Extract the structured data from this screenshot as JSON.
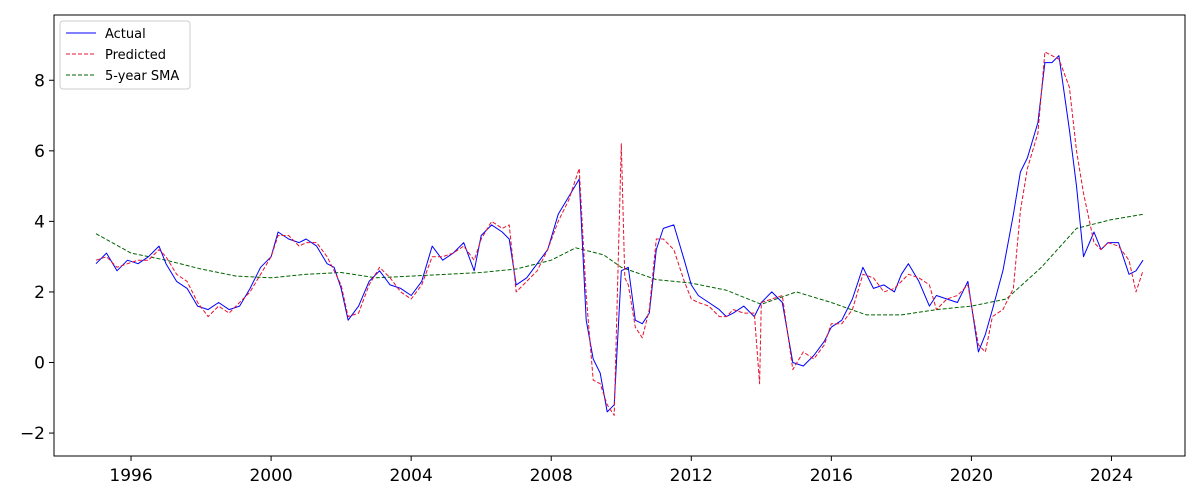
{
  "chart_data": {
    "type": "line",
    "title": "",
    "xlabel": "",
    "ylabel": "",
    "xlim": [
      1993.8,
      2026.1
    ],
    "ylim": [
      -2.65,
      9.85
    ],
    "x_ticks": [
      1996,
      2000,
      2004,
      2008,
      2012,
      2016,
      2020,
      2024
    ],
    "x_tick_labels": [
      "1996",
      "2000",
      "2004",
      "2008",
      "2012",
      "2016",
      "2020",
      "2024"
    ],
    "y_ticks": [
      -2,
      0,
      2,
      4,
      6,
      8
    ],
    "y_tick_labels": [
      "−2",
      "0",
      "2",
      "4",
      "6",
      "8"
    ],
    "grid": false,
    "legend_position": "top-left",
    "series": [
      {
        "name": "Actual",
        "color": "#0000ff",
        "style": "solid",
        "x": [
          1995.0,
          1995.3,
          1995.6,
          1995.9,
          1996.2,
          1996.5,
          1996.8,
          1997.0,
          1997.3,
          1997.6,
          1997.9,
          1998.2,
          1998.5,
          1998.8,
          1999.1,
          1999.4,
          1999.7,
          2000.0,
          2000.2,
          2000.5,
          2000.8,
          2001.0,
          2001.3,
          2001.6,
          2001.8,
          2002.0,
          2002.2,
          2002.5,
          2002.8,
          2003.1,
          2003.4,
          2003.7,
          2004.0,
          2004.3,
          2004.6,
          2004.9,
          2005.2,
          2005.5,
          2005.8,
          2006.0,
          2006.3,
          2006.6,
          2006.8,
          2007.0,
          2007.3,
          2007.6,
          2007.9,
          2008.2,
          2008.5,
          2008.8,
          2009.0,
          2009.2,
          2009.4,
          2009.6,
          2009.8,
          2010.0,
          2010.2,
          2010.4,
          2010.6,
          2010.8,
          2011.0,
          2011.2,
          2011.5,
          2011.8,
          2012.0,
          2012.2,
          2012.5,
          2012.8,
          2013.0,
          2013.2,
          2013.5,
          2013.8,
          2014.0,
          2014.3,
          2014.6,
          2014.9,
          2015.2,
          2015.5,
          2015.8,
          2016.0,
          2016.3,
          2016.6,
          2016.9,
          2017.2,
          2017.5,
          2017.8,
          2018.0,
          2018.2,
          2018.5,
          2018.8,
          2019.0,
          2019.3,
          2019.6,
          2019.9,
          2020.2,
          2020.4,
          2020.6,
          2020.9,
          2021.2,
          2021.4,
          2021.6,
          2021.9,
          2022.1,
          2022.3,
          2022.5,
          2022.8,
          2023.0,
          2023.2,
          2023.5,
          2023.7,
          2023.9,
          2024.2,
          2024.5,
          2024.7,
          2024.9
        ],
        "y": [
          2.8,
          3.1,
          2.6,
          2.9,
          2.8,
          3.0,
          3.3,
          2.8,
          2.3,
          2.1,
          1.6,
          1.5,
          1.7,
          1.5,
          1.6,
          2.1,
          2.7,
          3.0,
          3.7,
          3.5,
          3.4,
          3.5,
          3.3,
          2.8,
          2.7,
          2.1,
          1.2,
          1.6,
          2.3,
          2.6,
          2.2,
          2.1,
          1.9,
          2.3,
          3.3,
          2.9,
          3.1,
          3.4,
          2.6,
          3.6,
          3.9,
          3.7,
          3.5,
          2.2,
          2.4,
          2.8,
          3.2,
          4.2,
          4.7,
          5.2,
          1.2,
          0.1,
          -0.3,
          -1.4,
          -1.2,
          2.6,
          2.7,
          1.2,
          1.1,
          1.4,
          3.2,
          3.8,
          3.9,
          2.9,
          2.2,
          1.9,
          1.7,
          1.5,
          1.3,
          1.4,
          1.6,
          1.3,
          1.7,
          2.0,
          1.7,
          0.0,
          -0.1,
          0.2,
          0.6,
          1.0,
          1.2,
          1.8,
          2.7,
          2.1,
          2.2,
          2.0,
          2.5,
          2.8,
          2.3,
          1.6,
          1.9,
          1.8,
          1.7,
          2.3,
          0.3,
          0.8,
          1.5,
          2.6,
          4.2,
          5.4,
          5.8,
          6.8,
          8.5,
          8.5,
          8.7,
          6.6,
          5.0,
          3.0,
          3.7,
          3.2,
          3.4,
          3.4,
          2.5,
          2.6,
          2.9
        ]
      },
      {
        "name": "Predicted",
        "color": "#e8112d",
        "style": "dashed",
        "x": [
          1995.0,
          1995.3,
          1995.6,
          1995.9,
          1996.2,
          1996.5,
          1996.8,
          1997.0,
          1997.3,
          1997.6,
          1997.9,
          1998.2,
          1998.5,
          1998.8,
          1999.1,
          1999.4,
          1999.7,
          2000.0,
          2000.2,
          2000.5,
          2000.8,
          2001.0,
          2001.3,
          2001.6,
          2001.8,
          2002.0,
          2002.2,
          2002.5,
          2002.8,
          2003.1,
          2003.4,
          2003.7,
          2004.0,
          2004.3,
          2004.6,
          2004.9,
          2005.2,
          2005.5,
          2005.8,
          2006.0,
          2006.3,
          2006.6,
          2006.8,
          2007.0,
          2007.3,
          2007.6,
          2007.9,
          2008.2,
          2008.5,
          2008.8,
          2009.0,
          2009.2,
          2009.4,
          2009.6,
          2009.8,
          2010.0,
          2010.1,
          2010.2,
          2010.4,
          2010.6,
          2010.8,
          2011.0,
          2011.2,
          2011.5,
          2011.8,
          2012.0,
          2012.2,
          2012.5,
          2012.8,
          2013.0,
          2013.2,
          2013.5,
          2013.8,
          2013.95,
          2014.0,
          2014.3,
          2014.6,
          2014.9,
          2015.2,
          2015.5,
          2015.8,
          2016.0,
          2016.3,
          2016.6,
          2016.9,
          2017.2,
          2017.5,
          2017.8,
          2018.0,
          2018.2,
          2018.5,
          2018.8,
          2019.0,
          2019.3,
          2019.6,
          2019.9,
          2020.2,
          2020.4,
          2020.6,
          2020.9,
          2021.2,
          2021.4,
          2021.6,
          2021.9,
          2022.1,
          2022.3,
          2022.5,
          2022.8,
          2023.0,
          2023.2,
          2023.5,
          2023.7,
          2023.9,
          2024.2,
          2024.5,
          2024.7,
          2024.9
        ],
        "y": [
          2.9,
          3.0,
          2.7,
          2.8,
          2.9,
          2.9,
          3.2,
          3.0,
          2.5,
          2.3,
          1.7,
          1.3,
          1.6,
          1.4,
          1.7,
          2.0,
          2.5,
          3.0,
          3.6,
          3.6,
          3.3,
          3.4,
          3.4,
          3.0,
          2.6,
          2.2,
          1.3,
          1.4,
          2.2,
          2.7,
          2.4,
          2.0,
          1.8,
          2.2,
          3.0,
          3.0,
          3.1,
          3.3,
          2.9,
          3.5,
          4.0,
          3.8,
          3.9,
          2.0,
          2.3,
          2.6,
          3.2,
          4.0,
          4.6,
          5.5,
          1.9,
          -0.5,
          -0.6,
          -1.2,
          -1.5,
          6.2,
          2.4,
          2.2,
          1.0,
          0.7,
          1.5,
          3.5,
          3.5,
          3.2,
          2.3,
          1.8,
          1.7,
          1.6,
          1.3,
          1.3,
          1.5,
          1.4,
          1.4,
          -0.6,
          1.7,
          1.8,
          1.9,
          -0.2,
          0.3,
          0.1,
          0.5,
          1.1,
          1.1,
          1.5,
          2.5,
          2.4,
          2.0,
          2.1,
          2.3,
          2.5,
          2.4,
          2.2,
          1.5,
          1.8,
          1.9,
          2.2,
          0.5,
          0.3,
          1.3,
          1.5,
          2.1,
          4.3,
          5.5,
          6.5,
          8.8,
          8.7,
          8.6,
          7.8,
          6.0,
          4.8,
          3.4,
          3.2,
          3.4,
          3.3,
          2.9,
          2.0,
          2.6
        ]
      },
      {
        "name": "5-year SMA",
        "color": "#006400",
        "style": "dashed",
        "x": [
          1995.0,
          1996.0,
          1997.0,
          1998.0,
          1999.0,
          2000.0,
          2001.0,
          2002.0,
          2003.0,
          2004.0,
          2005.0,
          2006.0,
          2007.0,
          2008.0,
          2008.7,
          2009.5,
          2010.0,
          2011.0,
          2012.0,
          2013.0,
          2014.0,
          2015.0,
          2016.0,
          2017.0,
          2018.0,
          2019.0,
          2020.0,
          2021.0,
          2022.0,
          2023.0,
          2024.0,
          2024.9
        ],
        "y": [
          3.65,
          3.1,
          2.9,
          2.65,
          2.45,
          2.4,
          2.5,
          2.55,
          2.4,
          2.45,
          2.5,
          2.55,
          2.65,
          2.9,
          3.25,
          3.05,
          2.7,
          2.35,
          2.25,
          2.05,
          1.65,
          2.0,
          1.7,
          1.35,
          1.35,
          1.5,
          1.6,
          1.8,
          2.7,
          3.8,
          4.05,
          4.2
        ]
      }
    ]
  }
}
